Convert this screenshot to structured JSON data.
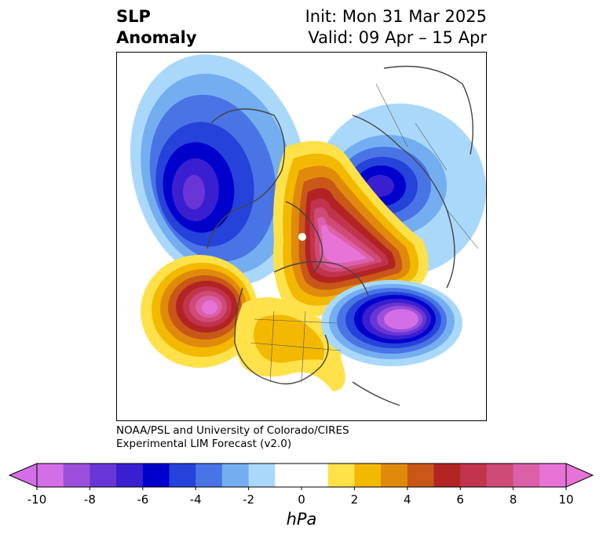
{
  "title": {
    "left_line1": "SLP",
    "left_line2": "Anomaly",
    "right_line1": "Init: Mon 31 Mar 2025",
    "right_line2": "Valid: 09 Apr – 15 Apr"
  },
  "credit": {
    "line1": "NOAA/PSL and University of Colorado/CIRES",
    "line2": "Experimental LIM Forecast (v2.0)"
  },
  "colorbar": {
    "unit": "hPa",
    "tick_labels": [
      "-10",
      "-8",
      "-6",
      "-4",
      "-2",
      "0",
      "2",
      "4",
      "6",
      "8",
      "10"
    ],
    "colors": [
      "#d36ee6",
      "#9b4fdb",
      "#6a35d6",
      "#3a1fd0",
      "#0000cd",
      "#2542da",
      "#4a74e6",
      "#74aef0",
      "#aad8fa",
      "#ffffff",
      "#ffffff",
      "#ffe14a",
      "#f3b800",
      "#e08a0c",
      "#c85718",
      "#b22424",
      "#c2344d",
      "#cf4a77",
      "#dc60a8",
      "#e873d6"
    ],
    "under_color": "#d36ee6",
    "over_color": "#e873d6"
  },
  "map": {
    "projection": "north-polar-stereographic",
    "variable": "sea level pressure anomaly",
    "features": [
      {
        "name": "negative-anomaly-north-atlantic",
        "sign": "negative",
        "peak": -7
      },
      {
        "name": "negative-anomaly-siberia",
        "sign": "negative",
        "peak": -6
      },
      {
        "name": "negative-anomaly-north-pacific",
        "sign": "negative",
        "peak": -10
      },
      {
        "name": "positive-anomaly-arctic",
        "sign": "positive",
        "peak": 10
      },
      {
        "name": "positive-anomaly-northeast-atlantic",
        "sign": "positive",
        "peak": 10
      },
      {
        "name": "positive-anomaly-eastern-us",
        "sign": "positive",
        "peak": 3
      }
    ]
  }
}
